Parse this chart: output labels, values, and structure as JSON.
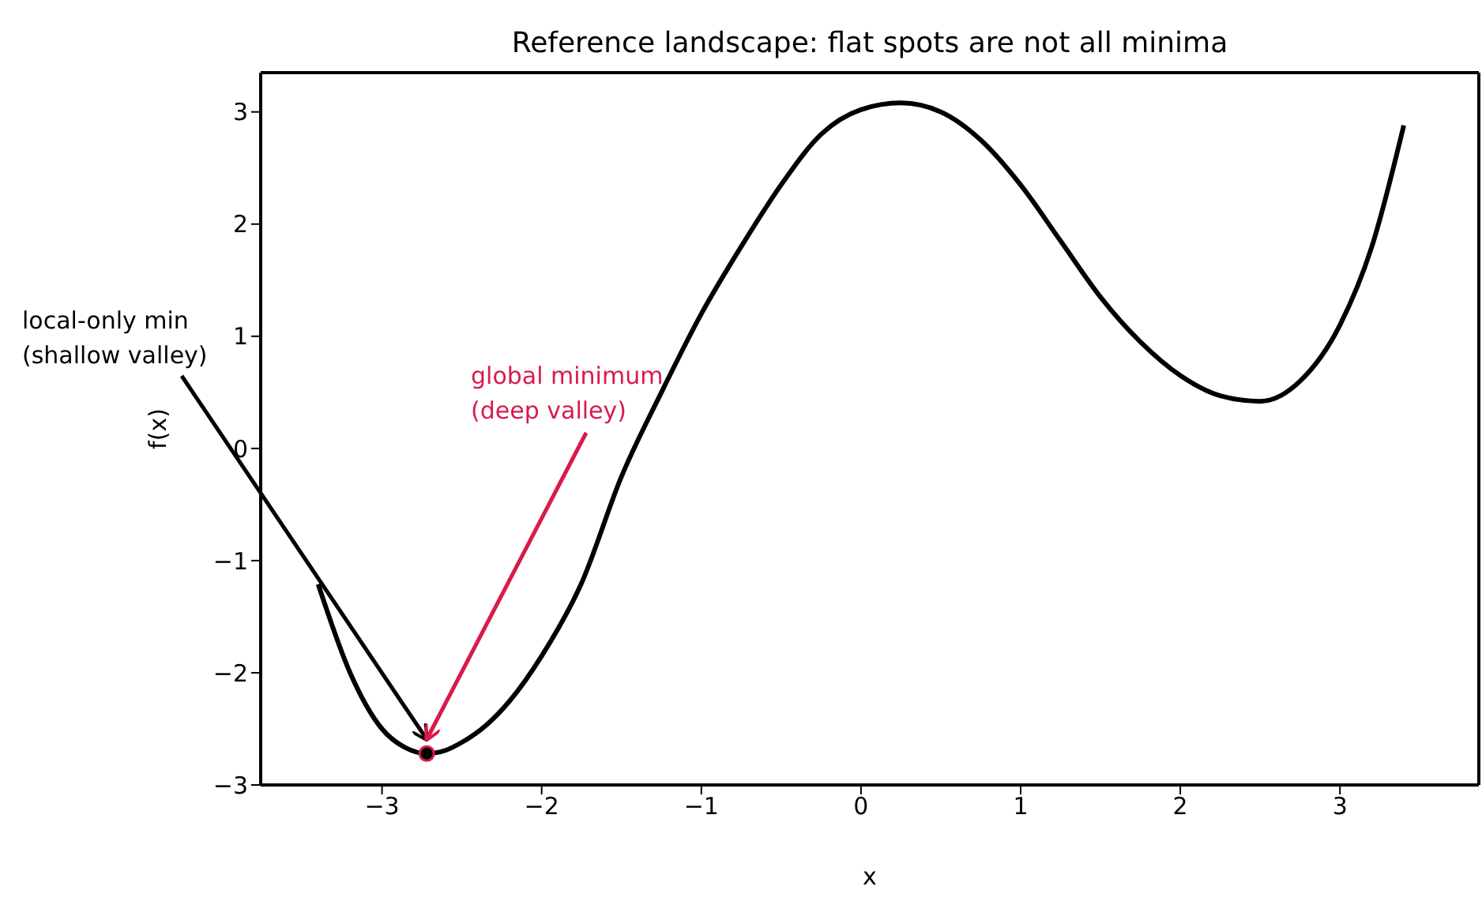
{
  "chart_data": {
    "type": "line",
    "title": "Reference landscape: flat spots are not all minima",
    "xlabel": "x",
    "ylabel": "f(x)",
    "xlim": [
      -3.76,
      3.87
    ],
    "ylim": [
      -3,
      3.35
    ],
    "xticks": [
      -3,
      -2,
      -1,
      0,
      1,
      2,
      3
    ],
    "yticks": [
      -3,
      -2,
      -1,
      0,
      1,
      2,
      3
    ],
    "series": [
      {
        "color": "#000000",
        "marker": "none",
        "line_style": "solid",
        "x": [
          -3.4,
          -3.2,
          -3.0,
          -2.85,
          -2.72,
          -2.6,
          -2.5,
          -2.35,
          -2.2,
          -2.0,
          -1.75,
          -1.5,
          -1.25,
          -1.0,
          -0.75,
          -0.5,
          -0.25,
          0,
          0.25,
          0.5,
          0.75,
          1.0,
          1.25,
          1.5,
          1.75,
          2.0,
          2.25,
          2.5,
          2.75,
          3.0,
          3.2,
          3.4
        ],
        "values": [
          -1.21,
          -2.0,
          -2.5,
          -2.67,
          -2.72,
          -2.69,
          -2.62,
          -2.47,
          -2.25,
          -1.85,
          -1.2,
          -0.25,
          0.5,
          1.2,
          1.8,
          2.35,
          2.8,
          3.02,
          3.08,
          3.0,
          2.75,
          2.35,
          1.85,
          1.35,
          0.95,
          0.65,
          0.47,
          0.42,
          0.6,
          1.1,
          1.8,
          2.88
        ]
      },
      {
        "type": "scatter",
        "color": "#000000",
        "marker": "circle",
        "x": [
          -2.72
        ],
        "values": [
          -2.72
        ]
      }
    ],
    "annotations": [
      {
        "text": "local-only min\n(shallow valley)",
        "x": -2.72,
        "y": -2.72
      },
      {
        "text": "global minimum\n(deep valley)",
        "x": -2.72,
        "y": -2.72
      }
    ]
  }
}
